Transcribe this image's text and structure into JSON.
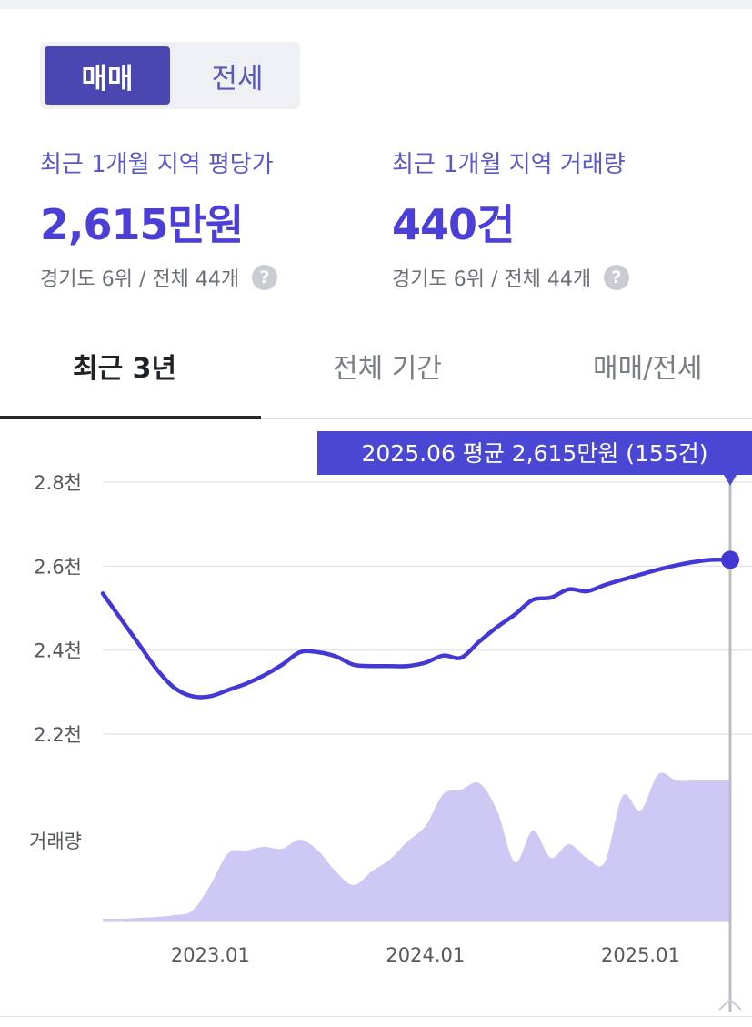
{
  "toggle": {
    "sale_label": "매매",
    "jeonse_label": "전세",
    "active": "sale"
  },
  "stats": {
    "price": {
      "label": "최근 1개월 지역 평당가",
      "value": "2,615만원",
      "rank": "경기도 6위 / 전체 44개"
    },
    "volume": {
      "label": "최근 1개월 지역 거래량",
      "value": "440건",
      "rank": "경기도 6위 / 전체 44개"
    },
    "help_glyph": "?"
  },
  "tabs": [
    {
      "label": "최근 3년",
      "active": true
    },
    {
      "label": "전체 기간",
      "active": false
    },
    {
      "label": "매매/전세",
      "active": false
    }
  ],
  "colors": {
    "line": "#4338d6",
    "volume_fill": "#cdc8f4",
    "tooltip_bg": "#4a47d4",
    "grid": "#e3e5ea"
  },
  "chart_data": {
    "type": "line",
    "y_tick_labels": [
      "2.8천",
      "2.6천",
      "2.4천",
      "2.2천"
    ],
    "y_ticks": [
      2800,
      2600,
      2400,
      2200
    ],
    "ylim": [
      2200,
      2800
    ],
    "volume_label": "거래량",
    "x_tick_labels": [
      "2023.01",
      "2024.01",
      "2025.01"
    ],
    "x_ticks": [
      2023.0,
      2024.0,
      2025.0
    ],
    "xlim": [
      2022.5,
      2025.4167
    ],
    "tooltip": "2025.06 평균 2,615만원 (155건)",
    "highlight_index": 35,
    "x": [
      2022.5,
      2022.5833,
      2022.6667,
      2022.75,
      2022.8333,
      2022.9167,
      2023.0,
      2023.0833,
      2023.1667,
      2023.25,
      2023.3333,
      2023.4167,
      2023.5,
      2023.5833,
      2023.6667,
      2023.75,
      2023.8333,
      2023.9167,
      2024.0,
      2024.0833,
      2024.1667,
      2024.25,
      2024.3333,
      2024.4167,
      2024.5,
      2024.5833,
      2024.6667,
      2024.75,
      2024.8333,
      2024.9167,
      2025.0,
      2025.0833,
      2025.1667,
      2025.25,
      2025.3333,
      2025.4167
    ],
    "series": [
      {
        "values": [
          2535,
          2475,
          2415,
          2355,
          2310,
          2290,
          2290,
          2305,
          2320,
          2340,
          2365,
          2395,
          2395,
          2385,
          2365,
          2362,
          2362,
          2362,
          2370,
          2387,
          2382,
          2420,
          2455,
          2485,
          2520,
          2525,
          2545,
          2540,
          2555,
          2568,
          2580,
          2592,
          2602,
          2610,
          2615,
          2615
        ]
      },
      {
        "values": [
          3,
          3,
          4,
          5,
          7,
          12,
          40,
          75,
          78,
          82,
          80,
          90,
          78,
          55,
          40,
          55,
          68,
          88,
          105,
          140,
          145,
          152,
          122,
          65,
          100,
          70,
          85,
          70,
          65,
          138,
          122,
          162,
          155,
          155,
          155,
          155
        ]
      }
    ],
    "volume_max": 200
  }
}
